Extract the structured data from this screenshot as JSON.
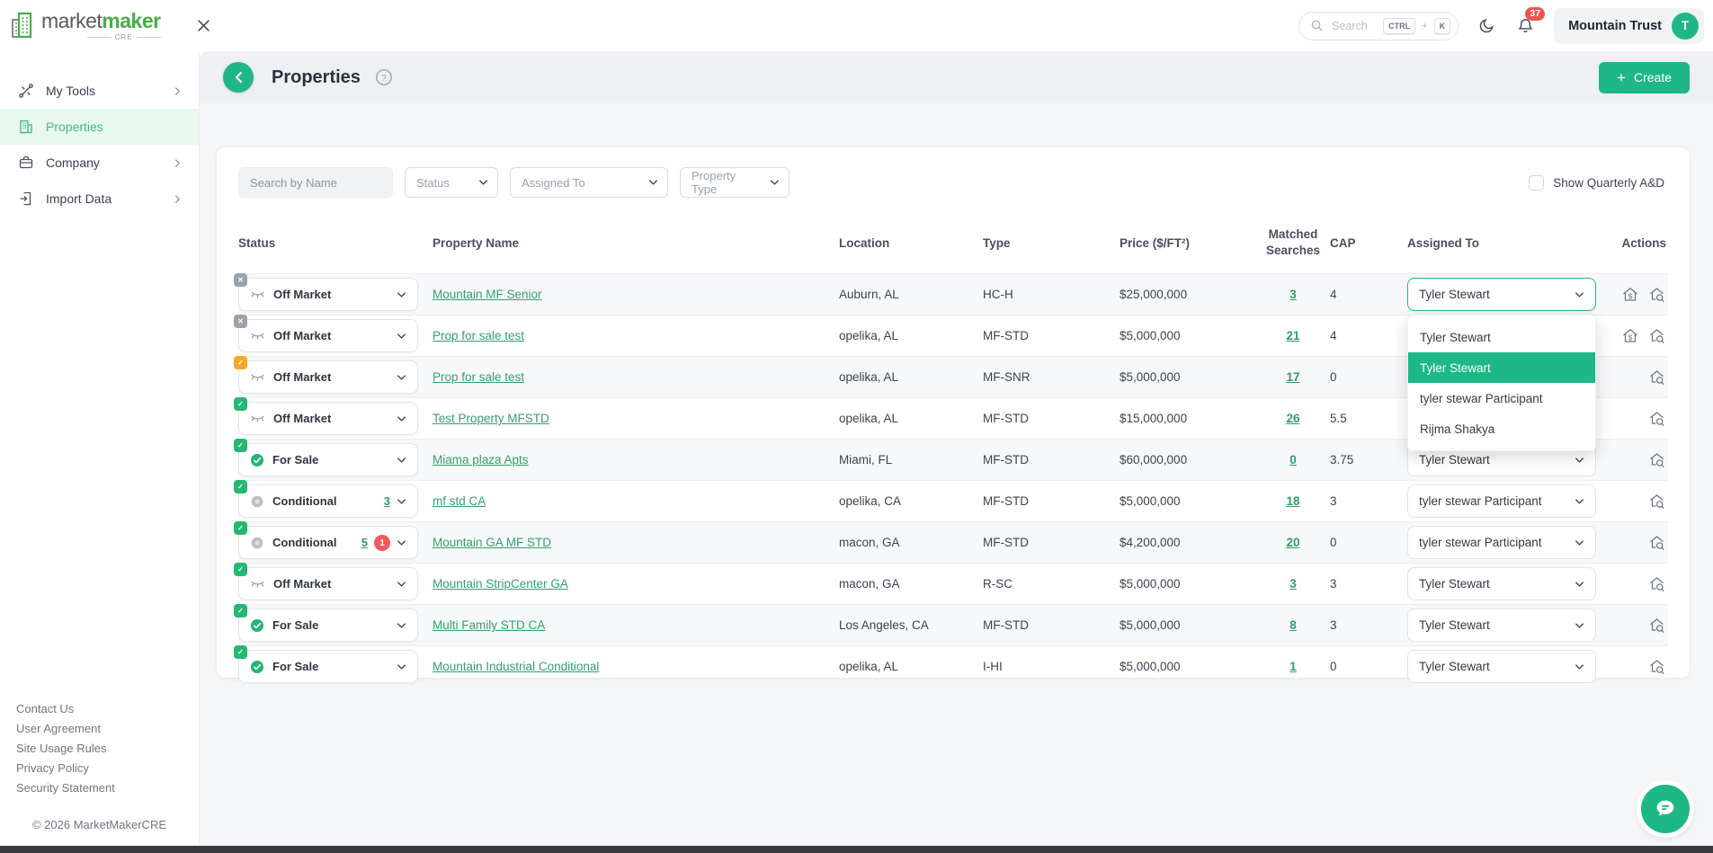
{
  "topbar": {
    "brand": {
      "word1": "market",
      "word2": "maker",
      "sub": "CRE"
    },
    "search_placeholder": "Search",
    "kbd": [
      "CTRL",
      "+",
      "K"
    ],
    "notification_count": "37",
    "user_name": "Mountain Trust",
    "user_initial": "T"
  },
  "sidebar": {
    "items": [
      {
        "label": "My Tools"
      },
      {
        "label": "Properties"
      },
      {
        "label": "Company"
      },
      {
        "label": "Import Data"
      }
    ],
    "footer_links": [
      "Contact Us",
      "User Agreement",
      "Site Usage Rules",
      "Privacy Policy",
      "Security Statement"
    ],
    "copyright": "© 2026 MarketMakerCRE"
  },
  "page_header": {
    "title": "Properties",
    "create_plus": "+",
    "create_label": "Create"
  },
  "filters": {
    "search_placeholder": "Search by Name",
    "status": "Status",
    "assigned_to": "Assigned To",
    "property_type": "Property Type",
    "show_quarterly": "Show Quarterly A&D"
  },
  "table": {
    "headers": {
      "status": "Status",
      "name": "Property Name",
      "location": "Location",
      "type": "Type",
      "price": "Price ($/FT²)",
      "matched": "Matched Searches",
      "cap": "CAP",
      "assigned": "Assigned To",
      "actions": "Actions"
    },
    "rows": [
      {
        "corner": "gray-x",
        "status_icon": "eye-off",
        "status": "Off Market",
        "status_link": "",
        "status_badge": "",
        "name": "Mountain MF Senior",
        "location": "Auburn, AL",
        "type": "HC-H",
        "price": "$25,000,000",
        "matched": "3",
        "cap": "4",
        "assigned": "Tyler Stewart",
        "assigned_state": "open",
        "actions": [
          "home-dollar",
          "home-search"
        ]
      },
      {
        "corner": "gray-x",
        "status_icon": "eye-off",
        "status": "Off Market",
        "status_link": "",
        "status_badge": "",
        "name": "Prop for sale test",
        "location": "opelika, AL",
        "type": "MF-STD",
        "price": "$5,000,000",
        "matched": "21",
        "cap": "4",
        "assigned": "",
        "assigned_state": "hidden",
        "actions": [
          "home-dollar",
          "home-search"
        ]
      },
      {
        "corner": "orange-check",
        "status_icon": "eye-off",
        "status": "Off Market",
        "status_link": "",
        "status_badge": "",
        "name": "Prop for sale test",
        "location": "opelika, AL",
        "type": "MF-SNR",
        "price": "$5,000,000",
        "matched": "17",
        "cap": "0",
        "assigned": "",
        "assigned_state": "hidden",
        "actions": [
          "home-search"
        ]
      },
      {
        "corner": "green-check",
        "status_icon": "eye-off",
        "status": "Off Market",
        "status_link": "",
        "status_badge": "",
        "name": "Test Property MFSTD",
        "location": "opelika, AL",
        "type": "MF-STD",
        "price": "$15,000,000",
        "matched": "26",
        "cap": "5.5",
        "assigned": "",
        "assigned_state": "hidden",
        "actions": [
          "home-search"
        ]
      },
      {
        "corner": "green-check",
        "status_icon": "check-circle",
        "status": "For Sale",
        "status_link": "",
        "status_badge": "",
        "name": "Miama plaza Apts",
        "location": "Miami, FL",
        "type": "MF-STD",
        "price": "$60,000,000",
        "matched": "0",
        "cap": "3.75",
        "assigned": "Tyler Stewart",
        "assigned_state": "normal",
        "actions": [
          "home-search"
        ]
      },
      {
        "corner": "green-check",
        "status_icon": "dot",
        "status": "Conditional",
        "status_link": "3",
        "status_badge": "",
        "name": "mf std CA",
        "location": "opelika, CA",
        "type": "MF-STD",
        "price": "$5,000,000",
        "matched": "18",
        "cap": "3",
        "assigned": "tyler stewar Participant",
        "assigned_state": "normal",
        "actions": [
          "home-search"
        ]
      },
      {
        "corner": "green-check",
        "status_icon": "dot",
        "status": "Conditional",
        "status_link": "5",
        "status_badge": "1",
        "name": "Mountain GA MF STD",
        "location": "macon, GA",
        "type": "MF-STD",
        "price": "$4,200,000",
        "matched": "20",
        "cap": "0",
        "assigned": "tyler stewar Participant",
        "assigned_state": "normal",
        "actions": [
          "home-search"
        ]
      },
      {
        "corner": "green-check",
        "status_icon": "eye-off",
        "status": "Off Market",
        "status_link": "",
        "status_badge": "",
        "name": "Mountain StripCenter GA",
        "location": "macon, GA",
        "type": "R-SC",
        "price": "$5,000,000",
        "matched": "3",
        "cap": "3",
        "assigned": "Tyler Stewart",
        "assigned_state": "normal",
        "actions": [
          "home-search"
        ]
      },
      {
        "corner": "green-check",
        "status_icon": "check-circle",
        "status": "For Sale",
        "status_link": "",
        "status_badge": "",
        "name": "Multi Family STD CA",
        "location": "Los Angeles, CA",
        "type": "MF-STD",
        "price": "$5,000,000",
        "matched": "8",
        "cap": "3",
        "assigned": "Tyler Stewart",
        "assigned_state": "normal",
        "actions": [
          "home-search"
        ]
      },
      {
        "corner": "green-check",
        "status_icon": "check-circle",
        "status": "For Sale",
        "status_link": "",
        "status_badge": "",
        "name": "Mountain Industrial Conditional",
        "location": "opelika, AL",
        "type": "I-HI",
        "price": "$5,000,000",
        "matched": "1",
        "cap": "0",
        "assigned": "Tyler Stewart",
        "assigned_state": "normal",
        "actions": [
          "home-search"
        ]
      }
    ]
  },
  "assigned_dropdown": {
    "options": [
      "Tyler Stewart",
      "Tyler Stewart",
      "tyler stewar Participant",
      "Rijma Shakya"
    ],
    "highlighted_index": 1
  },
  "colors": {
    "accent_green": "#1eb786",
    "logo_green": "#47ad45",
    "link_green": "#2f9e68",
    "badge_red": "#f15b5b",
    "badge_orange": "#f7a928",
    "badge_gray": "#9aa3ad",
    "sidebar_active_bg": "#e9f8ef",
    "band_bg": "#eef0f3",
    "content_bg": "#f5f6f8",
    "bottom_bar": "#3a3a3c"
  }
}
